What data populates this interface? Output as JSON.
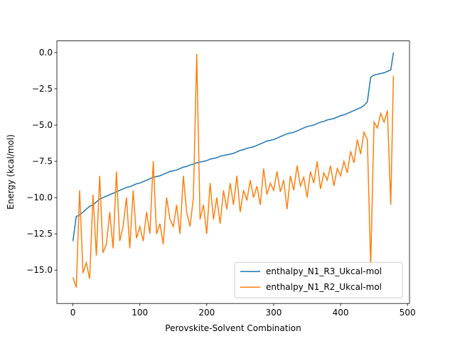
{
  "chart_data": {
    "type": "line",
    "xlabel": "Perovskite-Solvent Combination",
    "ylabel": "Energy (kcal/mol)",
    "x": [
      0,
      5,
      10,
      15,
      20,
      25,
      30,
      35,
      40,
      45,
      50,
      55,
      60,
      65,
      70,
      75,
      80,
      85,
      90,
      95,
      100,
      105,
      110,
      115,
      120,
      125,
      130,
      135,
      140,
      145,
      150,
      155,
      160,
      165,
      170,
      175,
      180,
      185,
      190,
      195,
      200,
      205,
      210,
      215,
      220,
      225,
      230,
      235,
      240,
      245,
      250,
      255,
      260,
      265,
      270,
      275,
      280,
      285,
      290,
      295,
      300,
      305,
      310,
      315,
      320,
      325,
      330,
      335,
      340,
      345,
      350,
      355,
      360,
      365,
      370,
      375,
      380,
      385,
      390,
      395,
      400,
      405,
      410,
      415,
      420,
      425,
      430,
      435,
      440,
      445,
      450,
      455,
      460,
      465,
      470,
      475,
      479
    ],
    "series": [
      {
        "name": "enthalpy_N1_R3_Ukcal-mol",
        "color": "#1f77b4",
        "values": [
          -13,
          -11.3,
          -11.2,
          -11,
          -10.8,
          -10.6,
          -10.5,
          -10.3,
          -10.1,
          -10,
          -9.9,
          -9.8,
          -9.7,
          -9.6,
          -9.5,
          -9.4,
          -9.3,
          -9.25,
          -9.15,
          -9.05,
          -9,
          -8.9,
          -8.8,
          -8.7,
          -8.6,
          -8.55,
          -8.5,
          -8.4,
          -8.3,
          -8.2,
          -8.15,
          -8.1,
          -8,
          -7.9,
          -7.85,
          -7.75,
          -7.7,
          -7.6,
          -7.55,
          -7.5,
          -7.45,
          -7.35,
          -7.3,
          -7.25,
          -7.15,
          -7.1,
          -7.05,
          -7,
          -6.95,
          -6.85,
          -6.75,
          -6.7,
          -6.6,
          -6.55,
          -6.5,
          -6.4,
          -6.3,
          -6.2,
          -6.1,
          -6.05,
          -6,
          -5.9,
          -5.8,
          -5.7,
          -5.6,
          -5.55,
          -5.5,
          -5.4,
          -5.3,
          -5.2,
          -5.1,
          -5.05,
          -5,
          -4.9,
          -4.8,
          -4.75,
          -4.65,
          -4.6,
          -4.55,
          -4.45,
          -4.35,
          -4.3,
          -4.2,
          -4.1,
          -4,
          -3.9,
          -3.8,
          -3.65,
          -3.4,
          -1.7,
          -1.55,
          -1.5,
          -1.45,
          -1.4,
          -1.3,
          -1.2,
          0
        ]
      },
      {
        "name": "enthalpy_N1_R2_Ukcal-mol",
        "color": "#ff7f0e",
        "values": [
          -15.5,
          -16.2,
          -9.5,
          -15.2,
          -14.5,
          -15.6,
          -9.8,
          -14,
          -8.5,
          -13.8,
          -13.2,
          -11,
          -13.5,
          -8.2,
          -13,
          -12,
          -10,
          -13.5,
          -9.5,
          -12.8,
          -12,
          -13,
          -11,
          -12.5,
          -7.5,
          -12.5,
          -11.8,
          -13.2,
          -10,
          -11.5,
          -12,
          -10.5,
          -12.5,
          -8.5,
          -11,
          -12,
          -10,
          -0.1,
          -11.5,
          -10.5,
          -12.5,
          -9,
          -11.5,
          -10,
          -11.8,
          -9.5,
          -10.8,
          -9,
          -10.5,
          -8.5,
          -11,
          -9.5,
          -10.2,
          -8.8,
          -10,
          -9.2,
          -10.5,
          -8,
          -9.8,
          -9,
          -9.5,
          -8.2,
          -9.6,
          -8.8,
          -10.8,
          -8.5,
          -9.5,
          -7.8,
          -9.2,
          -8.6,
          -10,
          -8.2,
          -9,
          -7.5,
          -9.4,
          -8.3,
          -8.8,
          -7.8,
          -9.2,
          -8,
          -8.5,
          -7.5,
          -8.3,
          -6.8,
          -7.6,
          -6,
          -7,
          -5.5,
          -6,
          -14.7,
          -4.8,
          -5.2,
          -4.2,
          -4.8,
          -4,
          -10.5,
          -1.6
        ]
      }
    ],
    "xlim": [
      -24,
      503
    ],
    "ylim": [
      -17.3,
      0.8
    ],
    "xticks": [
      0,
      100,
      200,
      300,
      400,
      500
    ],
    "yticks": [
      {
        "value": -15,
        "label": "−15.0"
      },
      {
        "value": -12.5,
        "label": "−12.5"
      },
      {
        "value": -10,
        "label": "−10.0"
      },
      {
        "value": -7.5,
        "label": "−7.5"
      },
      {
        "value": -5,
        "label": "−5.0"
      },
      {
        "value": -2.5,
        "label": "−2.5"
      },
      {
        "value": 0,
        "label": "0.0"
      }
    ],
    "legend": "lower right"
  }
}
